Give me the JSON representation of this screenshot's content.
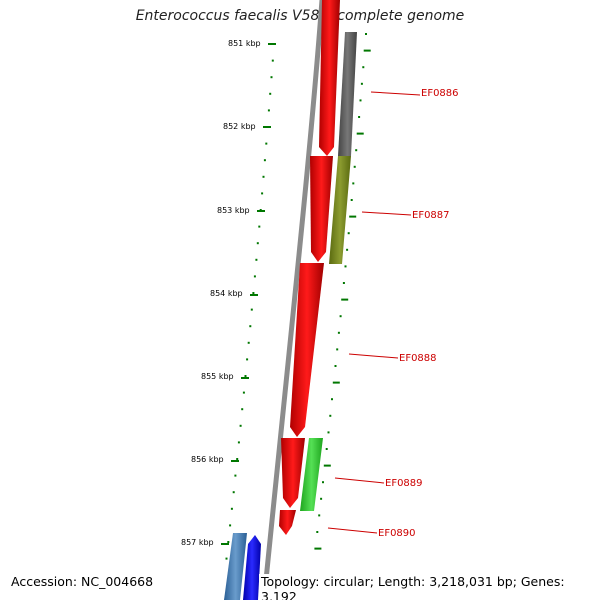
{
  "title": "Enterococcus faecalis V583, complete genome",
  "footer": {
    "accession": "Accession: NC_004668",
    "topology": "Topology: circular; Length: 3,218,031 bp; Genes: 3,192"
  },
  "scale": {
    "ticks": [
      {
        "label": "851 kbp"
      },
      {
        "label": "852 kbp"
      },
      {
        "label": "853 kbp"
      },
      {
        "label": "854 kbp"
      },
      {
        "label": "855 kbp"
      },
      {
        "label": "856 kbp"
      },
      {
        "label": "857 kbp"
      }
    ]
  },
  "genes": [
    {
      "label": "EF0886"
    },
    {
      "label": "EF0887"
    },
    {
      "label": "EF0888"
    },
    {
      "label": "EF0889"
    },
    {
      "label": "EF0890"
    }
  ],
  "colors": {
    "cds_track": "#ff0000",
    "gc_track_gray": "#666666",
    "gc_track_olive": "#7a8a20",
    "gc_track_green": "#33cc33",
    "gc_track_blue": "#3a78b0",
    "cds_track_blue": "#0000ee",
    "backbone": "#888888",
    "tick_green": "#007700",
    "label_red": "#cc0000"
  }
}
